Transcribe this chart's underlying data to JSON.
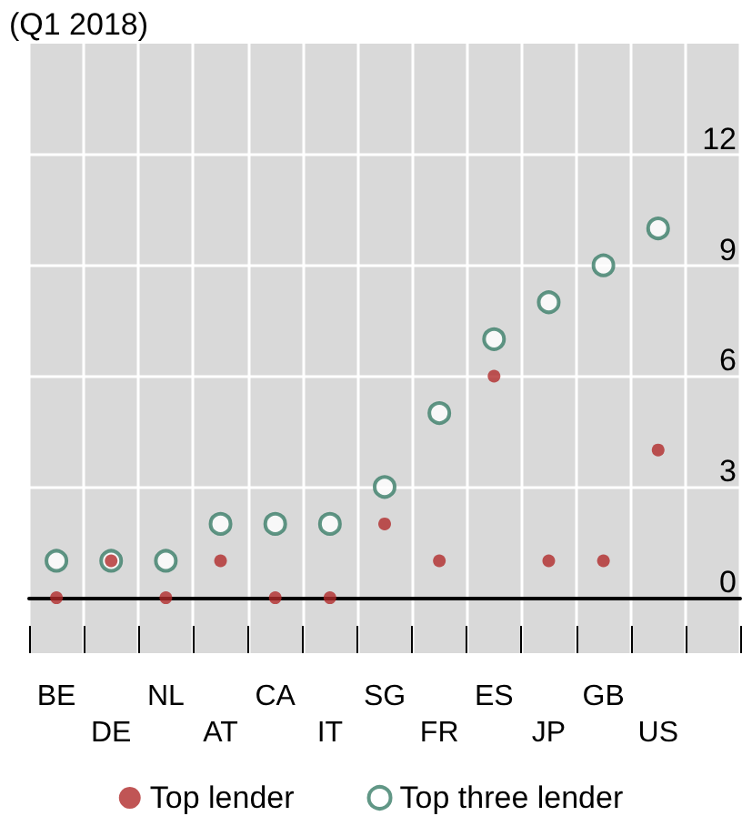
{
  "chart_data": {
    "type": "scatter",
    "title": "(Q1 2018)",
    "categories": [
      "BE",
      "DE",
      "NL",
      "AT",
      "CA",
      "IT",
      "SG",
      "FR",
      "ES",
      "JP",
      "GB",
      "US"
    ],
    "series": [
      {
        "name": "Top lender",
        "color": "#b02a2a",
        "marker": "circle",
        "values": [
          0,
          1,
          0,
          1,
          0,
          0,
          2,
          1,
          6,
          1,
          1,
          4
        ]
      },
      {
        "name": "Top three lender",
        "color": "#3a7d68",
        "marker": "hollow circle",
        "values": [
          1,
          1,
          1,
          2,
          2,
          2,
          3,
          5,
          7,
          8,
          9,
          10
        ]
      }
    ],
    "ylim": [
      -1.5,
      15
    ],
    "yticks": [
      0,
      3,
      6,
      9,
      12
    ],
    "grid": true,
    "legend": "bottom"
  }
}
